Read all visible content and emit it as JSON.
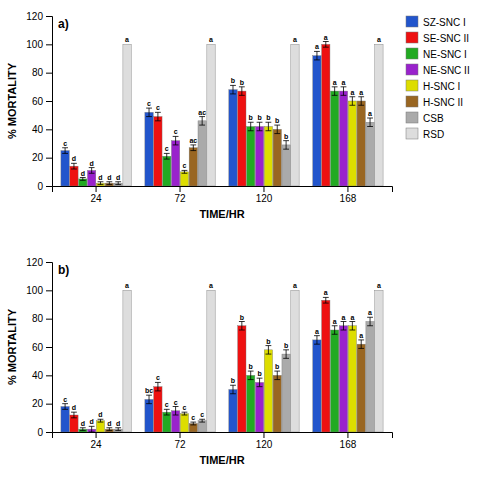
{
  "chart_data": [
    {
      "type": "bar",
      "title": "a)",
      "xlabel": "TIME/HR",
      "ylabel": "% MORTALITY",
      "categories": [
        "24",
        "72",
        "120",
        "168"
      ],
      "ylim": [
        0,
        120
      ],
      "yticks": [
        0,
        20,
        40,
        60,
        80,
        100,
        120
      ],
      "legend": "upper right",
      "series": [
        {
          "name": "SZ-SNC I",
          "color": "#2255cc",
          "values": [
            25,
            52,
            68,
            92
          ],
          "errors": [
            2,
            3,
            3,
            3
          ],
          "letters": [
            "c",
            "c",
            "b",
            "a"
          ]
        },
        {
          "name": "SE-SNC II",
          "color": "#ee1111",
          "values": [
            14,
            49,
            67,
            100
          ],
          "errors": [
            2,
            3,
            3,
            2
          ],
          "letters": [
            "d",
            "c",
            "b",
            "a"
          ]
        },
        {
          "name": "NE-SNC I",
          "color": "#22aa22",
          "values": [
            5,
            21,
            42,
            67
          ],
          "errors": [
            1,
            2,
            3,
            3
          ],
          "letters": [
            "d",
            "c",
            "b",
            "a"
          ]
        },
        {
          "name": "NE-SNC II",
          "color": "#9922cc",
          "values": [
            11,
            32,
            42,
            67
          ],
          "errors": [
            2,
            3,
            3,
            3
          ],
          "letters": [
            "d",
            "c",
            "b",
            "a"
          ]
        },
        {
          "name": "H-SNC I",
          "color": "#dddd00",
          "values": [
            2,
            10,
            42,
            60
          ],
          "errors": [
            1,
            1,
            3,
            3
          ],
          "letters": [
            "d",
            "c",
            "b",
            "a"
          ]
        },
        {
          "name": "H-SNC II",
          "color": "#996622",
          "values": [
            2,
            27,
            40,
            60
          ],
          "errors": [
            1,
            2,
            3,
            3
          ],
          "letters": [
            "d",
            "ac",
            "b",
            "a"
          ]
        },
        {
          "name": "CSB",
          "color": "#aaaaaa",
          "values": [
            2,
            46,
            29,
            45
          ],
          "errors": [
            1,
            3,
            3,
            3
          ],
          "letters": [
            "d",
            "ac",
            "b",
            "a"
          ]
        },
        {
          "name": "RSD",
          "color": "#dddddd",
          "values": [
            100,
            100,
            100,
            100
          ],
          "letters": [
            "a",
            "a",
            "a",
            "a"
          ]
        }
      ]
    },
    {
      "type": "bar",
      "title": "b)",
      "xlabel": "TIME/HR",
      "ylabel": "% MORTALITY",
      "categories": [
        "24",
        "72",
        "120",
        "168"
      ],
      "ylim": [
        0,
        120
      ],
      "yticks": [
        0,
        20,
        40,
        60,
        80,
        100,
        120
      ],
      "series": [
        {
          "name": "SZ-SNC I",
          "color": "#2255cc",
          "values": [
            18,
            23,
            30,
            65
          ],
          "errors": [
            2,
            3,
            3,
            3
          ],
          "letters": [
            "c",
            "bc",
            "b",
            "a"
          ]
        },
        {
          "name": "SE-SNC II",
          "color": "#ee1111",
          "values": [
            12,
            32,
            75,
            93
          ],
          "errors": [
            2,
            3,
            3,
            2
          ],
          "letters": [
            "d",
            "c",
            "b",
            "a"
          ]
        },
        {
          "name": "NE-SNC I",
          "color": "#22aa22",
          "values": [
            2,
            14,
            40,
            72
          ],
          "errors": [
            1,
            2,
            3,
            3
          ],
          "letters": [
            "d",
            "c",
            "b",
            "a"
          ]
        },
        {
          "name": "NE-SNC II",
          "color": "#9922cc",
          "values": [
            2,
            15,
            35,
            75
          ],
          "errors": [
            2,
            3,
            3,
            3
          ],
          "letters": [
            "d",
            "c",
            "b",
            "a"
          ]
        },
        {
          "name": "H-SNC I",
          "color": "#dddd00",
          "values": [
            8,
            13,
            58,
            75
          ],
          "errors": [
            1,
            1,
            3,
            3
          ],
          "letters": [
            "d",
            "c",
            "b",
            "a"
          ]
        },
        {
          "name": "H-SNC II",
          "color": "#996622",
          "values": [
            2,
            6,
            40,
            62
          ],
          "errors": [
            1,
            1,
            3,
            3
          ],
          "letters": [
            "d",
            "c",
            "b",
            "a"
          ]
        },
        {
          "name": "CSB",
          "color": "#aaaaaa",
          "values": [
            2,
            8,
            55,
            78
          ],
          "errors": [
            1,
            1,
            3,
            3
          ],
          "letters": [
            "d",
            "c",
            "b",
            "a"
          ]
        },
        {
          "name": "RSD",
          "color": "#dddddd",
          "values": [
            100,
            100,
            100,
            100
          ],
          "letters": [
            "a",
            "a",
            "a",
            "a"
          ]
        }
      ]
    }
  ]
}
